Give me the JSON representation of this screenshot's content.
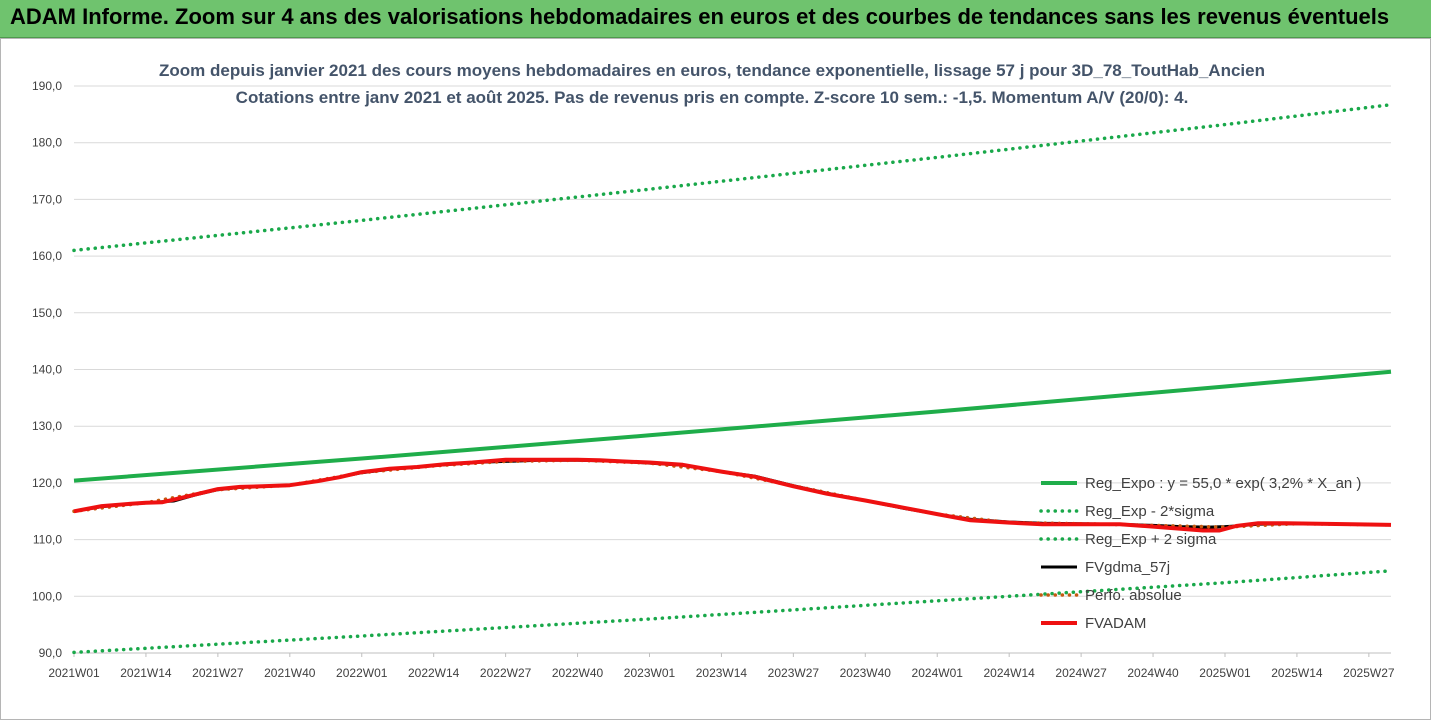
{
  "banner": {
    "title": "ADAM Informe. Zoom sur 4 ans des valorisations hebdomadaires en euros et des courbes de tendances sans les revenus éventuels"
  },
  "colors": {
    "banner_bg": "#6fc36e",
    "trend_green": "#1fad4a",
    "sigma_green": "#19a84a",
    "fv_black": "#000000",
    "perf_brown": "#c55a11",
    "fvadam_red": "#ee1111",
    "grid": "#d9d9d9",
    "title_text": "#44546a"
  },
  "chart_data": {
    "type": "line",
    "title_line1": "Zoom depuis janvier 2021 des cours moyens hebdomadaires en euros, tendance exponentielle, lissage 57 j pour 3D_78_ToutHab_Ancien",
    "title_line2": "Cotations entre janv 2021 et août 2025. Pas de revenus pris en compte. Z-score 10 sem.: -1,5. Momentum A/V (20/0): 4.",
    "ylim": [
      90,
      190
    ],
    "y_ticks": [
      "90,0",
      "100,0",
      "110,0",
      "120,0",
      "130,0",
      "140,0",
      "150,0",
      "160,0",
      "170,0",
      "180,0",
      "190,0"
    ],
    "grid": "horizontal",
    "x_tick_labels": [
      "2021W01",
      "2021W14",
      "2021W27",
      "2021W40",
      "2022W01",
      "2022W14",
      "2022W27",
      "2022W40",
      "2023W01",
      "2023W14",
      "2023W27",
      "2023W40",
      "2024W01",
      "2024W14",
      "2024W27",
      "2024W40",
      "2025W01",
      "2025W14",
      "2025W27"
    ],
    "x_week_index": [
      0,
      13,
      26,
      39,
      52,
      65,
      78,
      91,
      104,
      117,
      130,
      143,
      156,
      169,
      182,
      195,
      208,
      221,
      234
    ],
    "x_last_index": 238,
    "legend_position": "right",
    "series": [
      {
        "name": "Reg_Expo : y = 55,0 * exp( 3,2% *  X_an )",
        "style": "solid-thick",
        "color": "#1fad4a",
        "x": [
          0,
          52,
          104,
          156,
          208,
          238
        ],
        "y": [
          120.4,
          124.3,
          128.4,
          132.6,
          137.0,
          139.6
        ]
      },
      {
        "name": "Reg_Exp - 2*sigma",
        "style": "dotted",
        "color": "#19a84a",
        "x": [
          0,
          52,
          104,
          156,
          208,
          238
        ],
        "y": [
          90.1,
          93.0,
          96.0,
          99.2,
          102.4,
          104.5
        ]
      },
      {
        "name": "Reg_Exp + 2 sigma",
        "style": "dotted",
        "color": "#19a84a",
        "x": [
          0,
          52,
          104,
          156,
          208,
          238
        ],
        "y": [
          161.0,
          166.3,
          171.8,
          177.4,
          183.2,
          186.7
        ]
      },
      {
        "name": "FVgdma_57j",
        "style": "solid",
        "color": "#000000",
        "x": [
          0,
          5,
          10,
          13,
          18,
          22,
          26,
          30,
          34,
          39,
          44,
          48,
          52,
          57,
          62,
          67,
          72,
          78,
          84,
          88,
          91,
          95,
          99,
          104,
          110,
          117,
          123,
          130,
          136,
          143,
          150,
          156,
          162,
          169,
          175,
          182,
          189,
          195,
          200,
          205,
          208,
          210,
          214,
          219,
          225,
          231,
          238
        ],
        "y": [
          115.0,
          115.8,
          116.3,
          116.5,
          116.8,
          117.9,
          118.8,
          119.2,
          119.4,
          119.6,
          120.3,
          121.0,
          121.8,
          122.4,
          122.8,
          123.2,
          123.6,
          123.8,
          124.0,
          124.0,
          124.0,
          123.9,
          123.8,
          123.5,
          123.1,
          122.0,
          121.2,
          119.5,
          118.2,
          116.9,
          115.5,
          114.5,
          113.6,
          113.1,
          112.9,
          112.8,
          112.7,
          112.5,
          112.3,
          112.2,
          112.3,
          112.4,
          112.7,
          112.8,
          112.8,
          112.7,
          112.6
        ]
      },
      {
        "name": "Perfo. absolue",
        "style": "dotted",
        "color": "#c55a11",
        "x": [
          0,
          13,
          26,
          39,
          52,
          65,
          78,
          91,
          104,
          117,
          130,
          143,
          156,
          169,
          182,
          195,
          208,
          221,
          238
        ],
        "y": [
          115.0,
          116.5,
          118.8,
          119.6,
          121.8,
          123.0,
          123.8,
          124.0,
          123.5,
          122.0,
          119.5,
          116.9,
          114.5,
          113.0,
          112.8,
          112.5,
          112.2,
          112.8,
          112.6
        ]
      },
      {
        "name": "FVADAM",
        "style": "solid-thick",
        "color": "#ee1111",
        "x": [
          0,
          5,
          10,
          13,
          16,
          20,
          26,
          30,
          34,
          39,
          44,
          48,
          52,
          57,
          62,
          67,
          72,
          78,
          84,
          88,
          91,
          95,
          99,
          104,
          110,
          117,
          123,
          130,
          136,
          143,
          150,
          156,
          162,
          169,
          175,
          182,
          189,
          195,
          200,
          204,
          207,
          210,
          214,
          219,
          225,
          231,
          238
        ],
        "y": [
          115.0,
          115.9,
          116.3,
          116.5,
          116.6,
          117.5,
          118.9,
          119.3,
          119.4,
          119.6,
          120.3,
          121.0,
          121.9,
          122.5,
          122.8,
          123.3,
          123.6,
          124.1,
          124.1,
          124.1,
          124.1,
          124.0,
          123.8,
          123.6,
          123.2,
          122.0,
          121.1,
          119.4,
          118.1,
          116.9,
          115.6,
          114.5,
          113.4,
          113.0,
          112.7,
          112.7,
          112.7,
          112.3,
          111.9,
          111.6,
          111.6,
          112.4,
          112.9,
          112.9,
          112.8,
          112.7,
          112.6
        ]
      }
    ]
  }
}
